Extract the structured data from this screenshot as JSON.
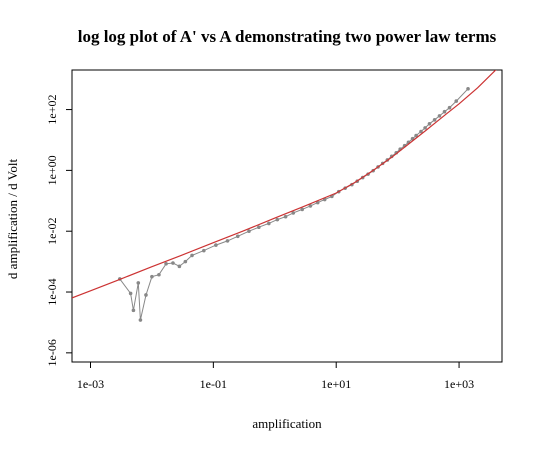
{
  "chart_data": {
    "type": "scatter",
    "title": "log log plot of A' vs A demonstrating two power law terms",
    "xlabel": "amplification",
    "ylabel": "d amplification / d Volt",
    "x_scale": "log10",
    "y_scale": "log10",
    "xlim": [
      0.0005,
      5000
    ],
    "ylim": [
      5e-07,
      2000
    ],
    "x_ticks": [
      {
        "value": 0.001,
        "label": "1e-03"
      },
      {
        "value": 0.1,
        "label": "1e-01"
      },
      {
        "value": 10,
        "label": "1e+01"
      },
      {
        "value": 1000,
        "label": "1e+03"
      }
    ],
    "y_ticks": [
      {
        "value": 1e-06,
        "label": "1e-06"
      },
      {
        "value": 0.0001,
        "label": "1e-04"
      },
      {
        "value": 0.01,
        "label": "1e-02"
      },
      {
        "value": 1,
        "label": "1e+00"
      },
      {
        "value": 100,
        "label": "1e+02"
      }
    ],
    "grid": false,
    "legend": "none",
    "series": [
      {
        "style": "points-with-lines",
        "color": "#888888",
        "x": [
          0.003,
          0.0045,
          0.005,
          0.006,
          0.0065,
          0.008,
          0.01,
          0.013,
          0.017,
          0.022,
          0.028,
          0.035,
          0.045,
          0.07,
          0.11,
          0.17,
          0.25,
          0.38,
          0.55,
          0.8,
          1.1,
          1.5,
          2.0,
          2.8,
          3.8,
          5.0,
          6.5,
          8.5,
          11,
          14,
          18,
          22,
          27,
          33,
          40,
          48,
          57,
          68,
          80,
          95,
          110,
          130,
          150,
          175,
          200,
          240,
          280,
          330,
          400,
          480,
          580,
          700,
          900,
          1400
        ],
        "y": [
          0.00027,
          9e-05,
          2.5e-05,
          0.0002,
          1.2e-05,
          8e-05,
          0.00032,
          0.00037,
          0.00085,
          0.0009,
          0.0007,
          0.001,
          0.0016,
          0.0023,
          0.0035,
          0.0048,
          0.0068,
          0.01,
          0.0135,
          0.018,
          0.024,
          0.03,
          0.04,
          0.052,
          0.068,
          0.087,
          0.11,
          0.14,
          0.2,
          0.26,
          0.34,
          0.44,
          0.58,
          0.75,
          0.98,
          1.3,
          1.7,
          2.2,
          2.9,
          3.8,
          5.0,
          6.5,
          8.4,
          11,
          14,
          19,
          25,
          34,
          46,
          62,
          85,
          115,
          190,
          480
        ]
      },
      {
        "style": "line",
        "color": "#cc3333",
        "x": [
          0.0005,
          0.001,
          0.003,
          0.01,
          0.03,
          0.1,
          0.3,
          1,
          3,
          10,
          20,
          40,
          80,
          150,
          300,
          600,
          1000,
          2000,
          5000
        ],
        "y": [
          6.4e-05,
          0.00011,
          0.00026,
          0.00068,
          0.0016,
          0.0042,
          0.01,
          0.027,
          0.066,
          0.18,
          0.4,
          1.0,
          2.7,
          7.3,
          22,
          68,
          155,
          520,
          3200
        ]
      }
    ]
  }
}
